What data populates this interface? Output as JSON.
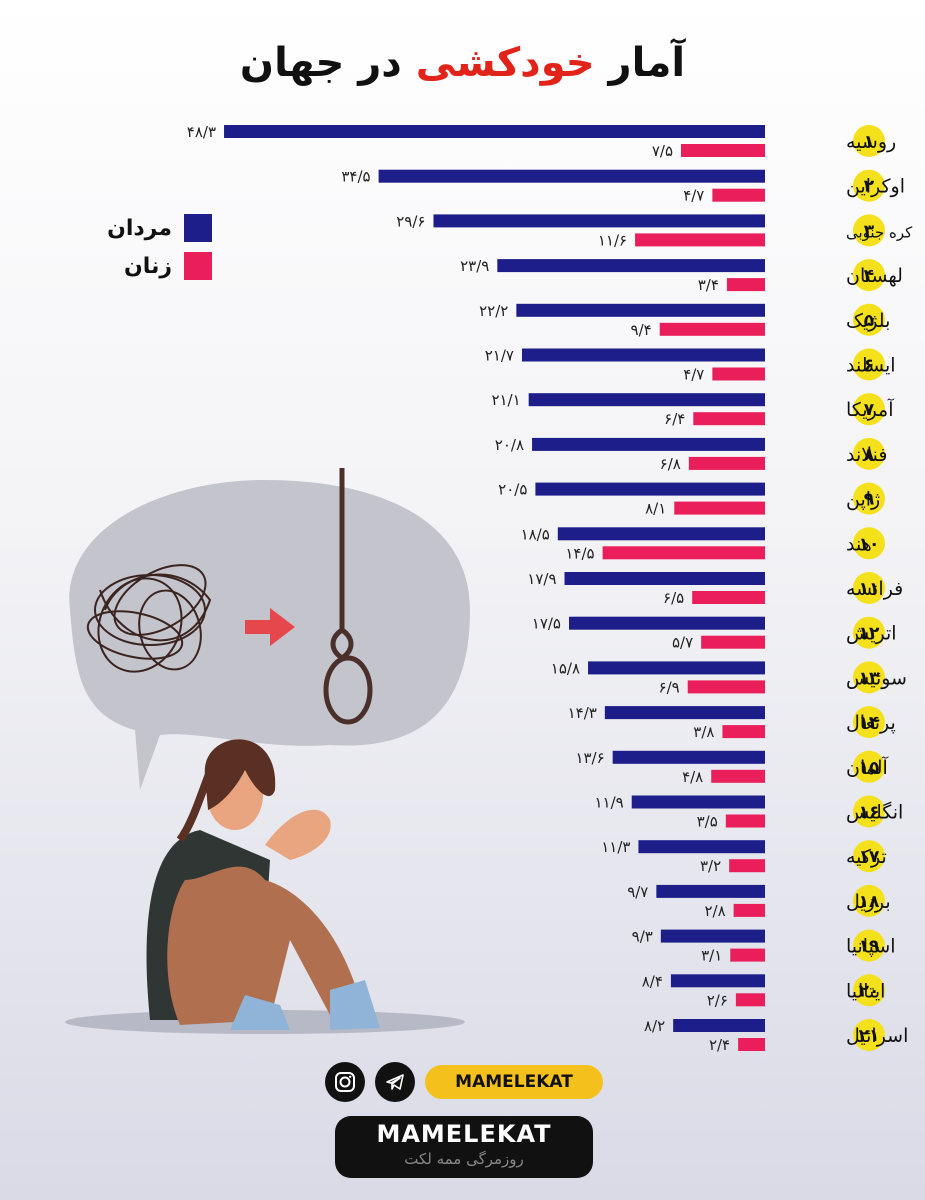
{
  "title": {
    "prefix": "آمار ",
    "highlight": "خودکشی",
    "suffix": " در جهان"
  },
  "legend": {
    "men": "مردان",
    "women": "زنان"
  },
  "colors": {
    "men": "#1e1e8a",
    "women": "#e91e5a",
    "rank_badge": "#f4e11c",
    "brand_accent": "#f4c01c"
  },
  "chart_data": {
    "type": "bar",
    "orientation": "horizontal",
    "grid": false,
    "legend_position": "left",
    "categories": [
      "روسیه",
      "اوکراین",
      "کره جنوبی",
      "لهستان",
      "بلژیک",
      "ایسلند",
      "آمریکا",
      "فنلاند",
      "ژاپن",
      "هند",
      "فرانسه",
      "اتریش",
      "سوئیس",
      "پرتغال",
      "آلمان",
      "انگلیس",
      "ترکیه",
      "برزیل",
      "اسپانیا",
      "ایتالیا",
      "اسرائیل"
    ],
    "ranks": [
      "۱",
      "۲",
      "۳",
      "۴",
      "۵",
      "۶",
      "۷",
      "۸",
      "۹",
      "۱۰",
      "۱۱",
      "۱۲",
      "۱۳",
      "۱۴",
      "۱۵",
      "۱۶",
      "۱۷",
      "۱۸",
      "۱۹",
      "۲۰",
      "۲۱"
    ],
    "series": [
      {
        "name": "مردان",
        "values": [
          48.3,
          34.5,
          29.6,
          23.9,
          22.2,
          21.7,
          21.1,
          20.8,
          20.5,
          18.5,
          17.9,
          17.5,
          15.8,
          14.3,
          13.6,
          11.9,
          11.3,
          9.7,
          9.3,
          8.4,
          8.2
        ],
        "labels": [
          "۴۸/۳",
          "۳۴/۵",
          "۲۹/۶",
          "۲۳/۹",
          "۲۲/۲",
          "۲۱/۷",
          "۲۱/۱",
          "۲۰/۸",
          "۲۰/۵",
          "۱۸/۵",
          "۱۷/۹",
          "۱۷/۵",
          "۱۵/۸",
          "۱۴/۳",
          "۱۳/۶",
          "۱۱/۹",
          "۱۱/۳",
          "۹/۷",
          "۹/۳",
          "۸/۴",
          "۸/۲"
        ]
      },
      {
        "name": "زنان",
        "values": [
          7.5,
          4.7,
          11.6,
          3.4,
          9.4,
          4.7,
          6.4,
          6.8,
          8.1,
          14.5,
          6.5,
          5.7,
          6.9,
          3.8,
          4.8,
          3.5,
          3.2,
          2.8,
          3.1,
          2.6,
          2.4
        ],
        "labels": [
          "۷/۵",
          "۴/۷",
          "۱۱/۶",
          "۳/۴",
          "۹/۴",
          "۴/۷",
          "۶/۴",
          "۶/۸",
          "۸/۱",
          "۱۴/۵",
          "۶/۵",
          "۵/۷",
          "۶/۹",
          "۳/۸",
          "۴/۸",
          "۳/۵",
          "۳/۲",
          "۲/۸",
          "۳/۱",
          "۲/۶",
          "۲/۴"
        ]
      }
    ]
  },
  "footer": {
    "social_icons": [
      "instagram-icon",
      "telegram-icon"
    ],
    "handle": "MAMELEKAT",
    "brand": "MAMELEKAT",
    "tagline": "روزمرگی ممه لکت"
  }
}
